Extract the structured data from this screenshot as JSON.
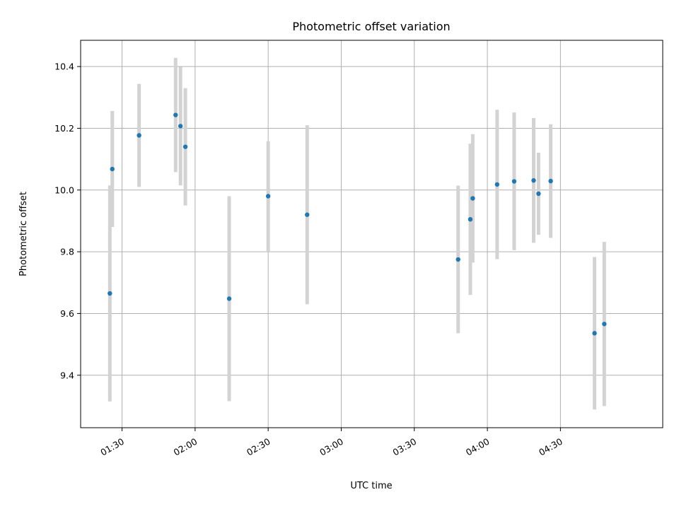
{
  "chart_data": {
    "type": "scatter",
    "title": "Photometric offset variation",
    "xlabel": "UTC time",
    "ylabel": "Photometric offset",
    "x_unit": "UTC time (HH:MM)",
    "xlim": [
      "01:13",
      "05:12"
    ],
    "ylim": [
      9.23,
      10.485
    ],
    "grid": true,
    "point_color": "#1f77b4",
    "errorbar_color": "#d3d3d3",
    "x_ticks": [
      "01:30",
      "02:00",
      "02:30",
      "03:00",
      "03:30",
      "04:00",
      "04:30"
    ],
    "y_ticks": [
      "9.4",
      "9.6",
      "9.8",
      "10.0",
      "10.2",
      "10.4"
    ],
    "points": [
      {
        "x": "01:25",
        "y": 9.665,
        "ymin": 9.315,
        "ymax": 10.015
      },
      {
        "x": "01:26",
        "y": 10.068,
        "ymin": 9.88,
        "ymax": 10.256
      },
      {
        "x": "01:37",
        "y": 10.177,
        "ymin": 10.01,
        "ymax": 10.344
      },
      {
        "x": "01:52",
        "y": 10.243,
        "ymin": 10.058,
        "ymax": 10.428
      },
      {
        "x": "01:54",
        "y": 10.207,
        "ymin": 10.015,
        "ymax": 10.399
      },
      {
        "x": "01:56",
        "y": 10.14,
        "ymin": 9.95,
        "ymax": 10.33
      },
      {
        "x": "02:14",
        "y": 9.648,
        "ymin": 9.316,
        "ymax": 9.98
      },
      {
        "x": "02:30",
        "y": 9.98,
        "ymin": 9.8,
        "ymax": 10.158
      },
      {
        "x": "02:46",
        "y": 9.92,
        "ymin": 9.63,
        "ymax": 10.21
      },
      {
        "x": "03:48",
        "y": 9.775,
        "ymin": 9.536,
        "ymax": 10.014
      },
      {
        "x": "03:53",
        "y": 9.905,
        "ymin": 9.66,
        "ymax": 10.15
      },
      {
        "x": "03:54",
        "y": 9.973,
        "ymin": 9.765,
        "ymax": 10.181
      },
      {
        "x": "04:04",
        "y": 10.018,
        "ymin": 9.776,
        "ymax": 10.26
      },
      {
        "x": "04:11",
        "y": 10.028,
        "ymin": 9.805,
        "ymax": 10.251
      },
      {
        "x": "04:19",
        "y": 10.031,
        "ymin": 9.829,
        "ymax": 10.233
      },
      {
        "x": "04:21",
        "y": 9.988,
        "ymin": 9.855,
        "ymax": 10.121
      },
      {
        "x": "04:26",
        "y": 10.029,
        "ymin": 9.845,
        "ymax": 10.213
      },
      {
        "x": "04:44",
        "y": 9.536,
        "ymin": 9.289,
        "ymax": 9.783
      },
      {
        "x": "04:48",
        "y": 9.566,
        "ymin": 9.3,
        "ymax": 9.832
      }
    ]
  }
}
